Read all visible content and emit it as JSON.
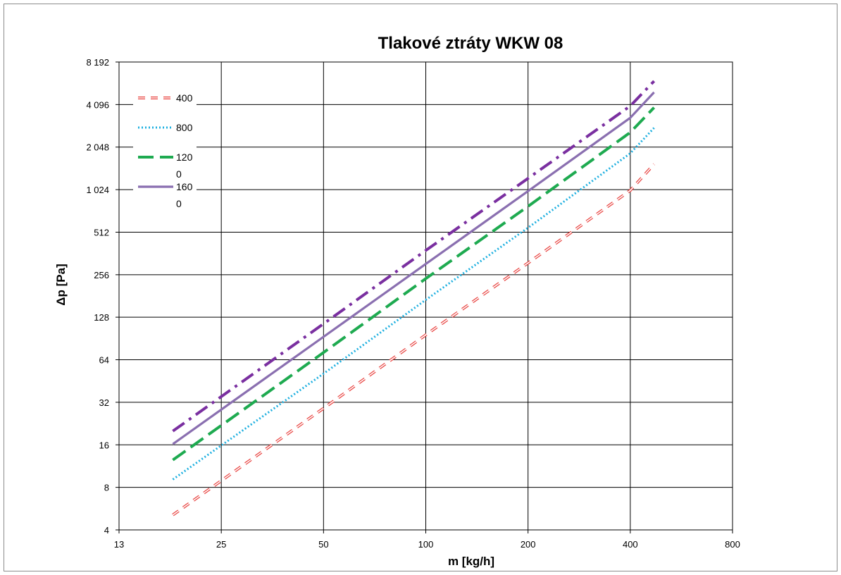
{
  "chart_data": {
    "type": "line",
    "title": "Tlakové ztráty WKW 08",
    "xlabel": "m [kg/h]",
    "ylabel": "Δp [Pa]",
    "x_scale": "log2",
    "y_scale": "log2",
    "xlim": [
      12.5,
      800
    ],
    "ylim": [
      4,
      8192
    ],
    "x_ticks": [
      12.5,
      25,
      50,
      100,
      200,
      400,
      800
    ],
    "x_tick_labels": [
      "13",
      "25",
      "50",
      "100",
      "200",
      "400",
      "800"
    ],
    "y_ticks": [
      4,
      8,
      16,
      32,
      64,
      128,
      256,
      512,
      1024,
      2048,
      4096,
      8192
    ],
    "y_tick_labels": [
      "4",
      "8",
      "16",
      "32",
      "64",
      "128",
      "256",
      "512",
      "1 024",
      "2 048",
      "4 096",
      "8 192"
    ],
    "grid": true,
    "legend_position": "top-left",
    "series": [
      {
        "name": "400",
        "legend_lines": [
          "400"
        ],
        "color": "#e8413e",
        "style": "dash-double",
        "points": [
          [
            18,
            5.1
          ],
          [
            50,
            29
          ],
          [
            100,
            96
          ],
          [
            200,
            310
          ],
          [
            400,
            1010
          ],
          [
            470,
            1550
          ]
        ]
      },
      {
        "name": "800",
        "legend_lines": [
          "800"
        ],
        "color": "#1fb0e0",
        "style": "dot",
        "points": [
          [
            18,
            9.1
          ],
          [
            50,
            51
          ],
          [
            100,
            170
          ],
          [
            200,
            550
          ],
          [
            400,
            1850
          ],
          [
            470,
            2800
          ]
        ]
      },
      {
        "name": "1200",
        "legend_lines": [
          "120",
          "0"
        ],
        "color": "#1eaa50",
        "style": "long-dash",
        "points": [
          [
            18,
            12.5
          ],
          [
            50,
            72
          ],
          [
            100,
            240
          ],
          [
            200,
            780
          ],
          [
            400,
            2600
          ],
          [
            470,
            3900
          ]
        ]
      },
      {
        "name": "1600",
        "legend_lines": [
          "160",
          "0"
        ],
        "color": "#8a6fb0",
        "style": "solid",
        "points": [
          [
            18,
            16.2
          ],
          [
            50,
            93
          ],
          [
            100,
            305
          ],
          [
            200,
            1000
          ],
          [
            400,
            3300
          ],
          [
            470,
            5000
          ]
        ]
      },
      {
        "name": "",
        "legend_lines": [],
        "color": "#7a2fa0",
        "style": "dash-dot",
        "points": [
          [
            18,
            20
          ],
          [
            50,
            115
          ],
          [
            100,
            380
          ],
          [
            200,
            1230
          ],
          [
            400,
            4000
          ],
          [
            470,
            6000
          ]
        ]
      }
    ]
  }
}
